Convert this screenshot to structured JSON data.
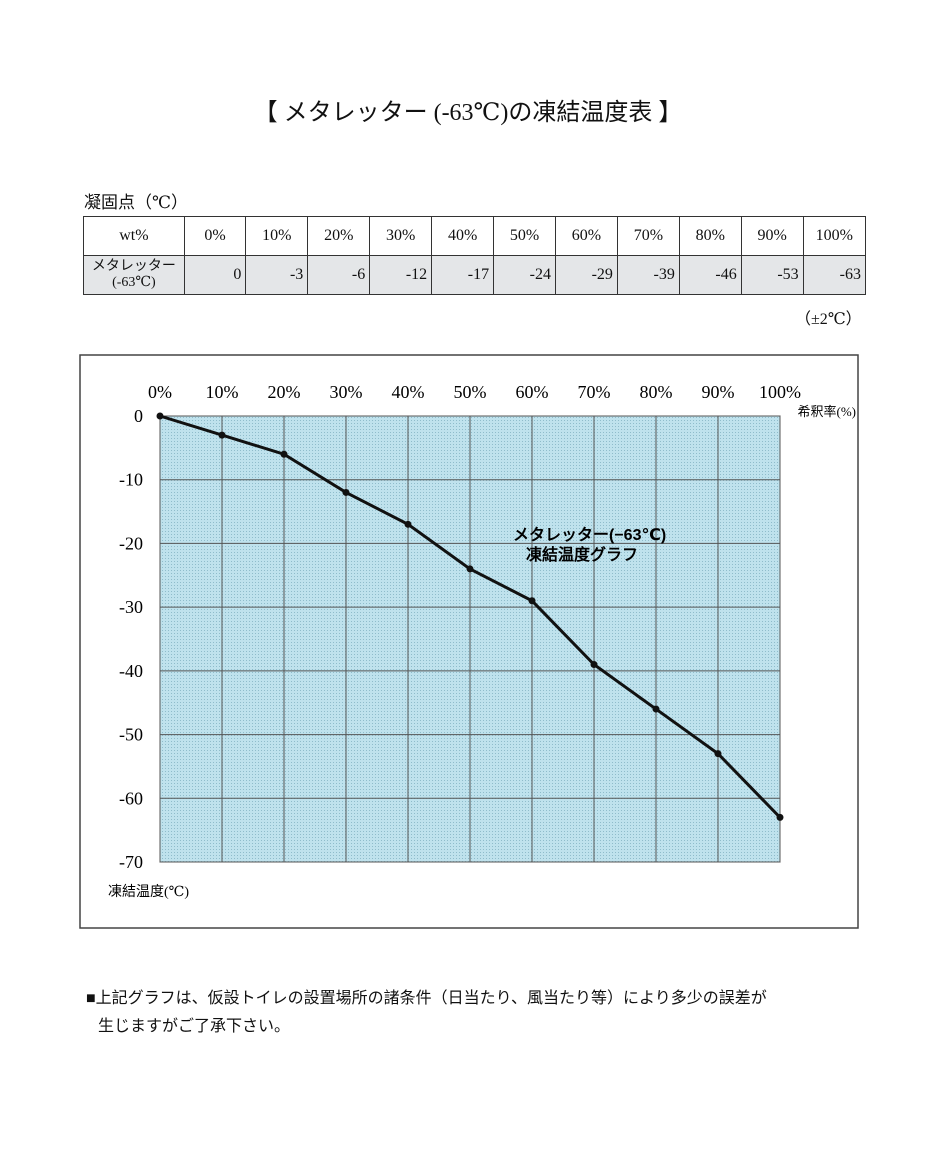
{
  "title": "【 メタレッター (-63℃)の凍結温度表 】",
  "table": {
    "caption": "凝固点（℃）",
    "header": [
      "wt%",
      "0%",
      "10%",
      "20%",
      "30%",
      "40%",
      "50%",
      "60%",
      "70%",
      "80%",
      "90%",
      "100%"
    ],
    "row_label": [
      "メタレッター",
      "(-63℃)"
    ],
    "values": [
      0,
      -3,
      -6,
      -12,
      -17,
      -24,
      -29,
      -39,
      -46,
      -53,
      -63
    ],
    "note": "（±2℃）"
  },
  "chart_data": {
    "type": "line",
    "categories": [
      "0%",
      "10%",
      "20%",
      "30%",
      "40%",
      "50%",
      "60%",
      "70%",
      "80%",
      "90%",
      "100%"
    ],
    "values": [
      0,
      -3,
      -6,
      -12,
      -17,
      -24,
      -29,
      -39,
      -46,
      -53,
      -63
    ],
    "color": "#111111",
    "x_label": "希釈率(%)",
    "y_label": "凍結温度(℃)",
    "annotation": [
      "メタレッター(−63℃)",
      "凍結温度グラフ"
    ],
    "ylim": [
      -70,
      0
    ],
    "yticks": [
      0,
      -10,
      -20,
      -30,
      -40,
      -50,
      -60,
      -70
    ],
    "grid": true
  },
  "footnote": [
    "■上記グラフは、仮設トイレの設置場所の諸条件（日当たり、風当たり等）により多少の誤差が",
    "生じますがご了承下さい。"
  ]
}
